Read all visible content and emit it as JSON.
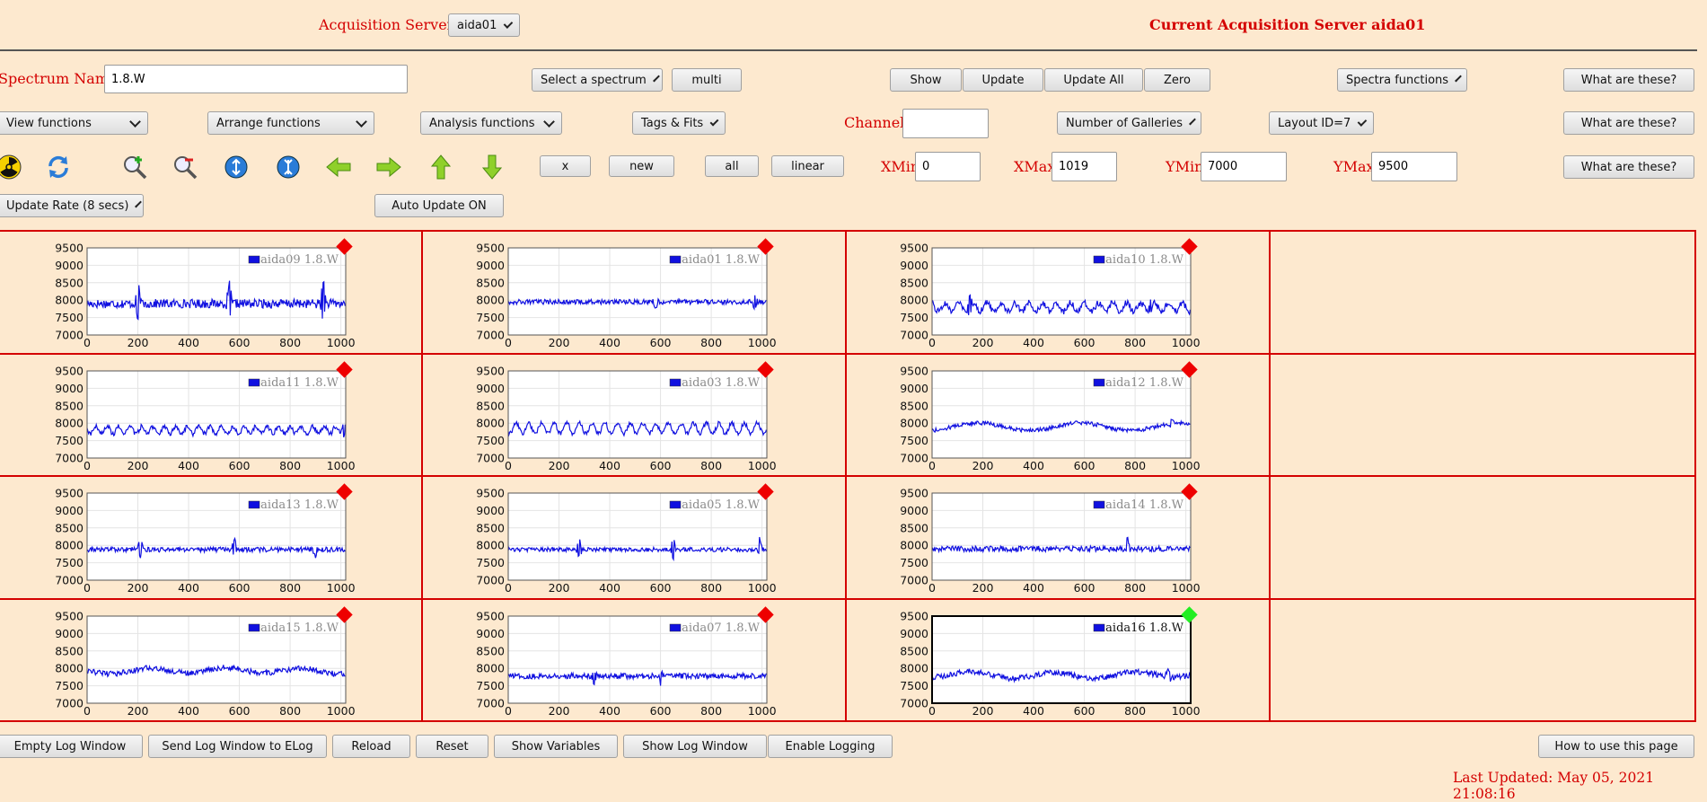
{
  "header": {
    "servers_label": "Acquisition Servers",
    "server_select": "aida01",
    "current_server": "Current Acquisition Server aida01"
  },
  "row1": {
    "spectrum_label": "Spectrum Name:",
    "spectrum_value": "1.8.W",
    "select_spectrum": "Select a spectrum",
    "multi": "multi",
    "show": "Show",
    "update": "Update",
    "update_all": "Update All",
    "zero": "Zero",
    "spectra_functions": "Spectra functions",
    "what": "What are these?"
  },
  "row2": {
    "view_functions": "View functions",
    "arrange_functions": "Arrange functions",
    "analysis_functions": "Analysis functions",
    "tags_fits": "Tags & Fits",
    "channel_label": "Channel:",
    "channel_value": "",
    "galleries": "Number of Galleries",
    "layout": "Layout ID=7",
    "what": "What are these?"
  },
  "row3": {
    "icons": [
      "radiation-icon",
      "refresh-icon",
      "zoom-in-icon",
      "zoom-out-icon",
      "expand-y-icon",
      "shrink-y-icon",
      "arrow-left-icon",
      "arrow-right-icon",
      "arrow-up-icon",
      "arrow-down-icon"
    ],
    "x": "x",
    "new": "new",
    "all": "all",
    "linear": "linear",
    "xmin_label": "XMin",
    "xmin": "0",
    "xmax_label": "XMax",
    "xmax": "1019",
    "ymin_label": "YMin",
    "ymin": "7000",
    "ymax_label": "YMax",
    "ymax": "9500",
    "what": "What are these?"
  },
  "row4": {
    "update_rate": "Update Rate (8 secs)",
    "auto_update": "Auto Update ON"
  },
  "chart_data": {
    "type": "line",
    "xlim": [
      0,
      1019
    ],
    "ylim": [
      7000,
      9500
    ],
    "x_ticks": [
      "0",
      "200",
      "400",
      "600",
      "800",
      "1000"
    ],
    "y_ticks": [
      "9500",
      "9000",
      "8500",
      "8000",
      "7500",
      "7000"
    ],
    "grid": true,
    "legend_position": "top-right",
    "series_color": "#1010e0",
    "spectra": [
      {
        "legend": "aida09 1.8.W",
        "base": 7900,
        "noise": 130,
        "spikes": [
          [
            200,
            750
          ],
          [
            560,
            600
          ],
          [
            930,
            720
          ]
        ],
        "wave_amp": 0,
        "wave_period": 80,
        "drift": 0,
        "active": false
      },
      {
        "legend": "aida01 1.8.W",
        "base": 7950,
        "noise": 70,
        "spikes": [
          [
            580,
            300
          ],
          [
            970,
            250
          ]
        ],
        "wave_amp": 0,
        "wave_period": 80,
        "drift": 0,
        "active": false
      },
      {
        "legend": "aida10 1.8.W",
        "base": 7800,
        "noise": 90,
        "spikes": [
          [
            150,
            350
          ],
          [
            860,
            280
          ]
        ],
        "wave_amp": 120,
        "wave_period": 55,
        "drift": 0,
        "active": false
      },
      {
        "legend": "aida11 1.8.W",
        "base": 7800,
        "noise": 70,
        "spikes": [
          [
            1010,
            300
          ]
        ],
        "wave_amp": 100,
        "wave_period": 45,
        "drift": 0,
        "active": false
      },
      {
        "legend": "aida03 1.8.W",
        "base": 7850,
        "noise": 60,
        "spikes": [],
        "wave_amp": 150,
        "wave_period": 50,
        "drift": 0,
        "active": false
      },
      {
        "legend": "aida12 1.8.W",
        "base": 7900,
        "noise": 60,
        "spikes": [
          [
            940,
            200
          ]
        ],
        "wave_amp": 110,
        "wave_period": 400,
        "drift": 0,
        "active": false
      },
      {
        "legend": "aida13 1.8.W",
        "base": 7880,
        "noise": 70,
        "spikes": [
          [
            210,
            300
          ],
          [
            580,
            300
          ],
          [
            900,
            250
          ]
        ],
        "wave_amp": 0,
        "wave_period": 80,
        "drift": 0,
        "active": false
      },
      {
        "legend": "aida05 1.8.W",
        "base": 7880,
        "noise": 60,
        "spikes": [
          [
            280,
            350
          ],
          [
            650,
            400
          ],
          [
            990,
            300
          ]
        ],
        "wave_amp": 0,
        "wave_period": 80,
        "drift": 0,
        "active": false
      },
      {
        "legend": "aida14 1.8.W",
        "base": 7900,
        "noise": 80,
        "spikes": [
          [
            770,
            300
          ]
        ],
        "wave_amp": 0,
        "wave_period": 80,
        "drift": 0,
        "active": false
      },
      {
        "legend": "aida15 1.8.W",
        "base": 7900,
        "noise": 80,
        "spikes": [],
        "wave_amp": 70,
        "wave_period": 300,
        "drift": 50,
        "active": false
      },
      {
        "legend": "aida07 1.8.W",
        "base": 7780,
        "noise": 80,
        "spikes": [
          [
            340,
            -250
          ],
          [
            600,
            -200
          ]
        ],
        "wave_amp": 0,
        "wave_period": 80,
        "drift": 0,
        "active": false
      },
      {
        "legend": "aida16 1.8.W",
        "base": 7850,
        "noise": 80,
        "spikes": [
          [
            930,
            300
          ]
        ],
        "wave_amp": 90,
        "wave_period": 320,
        "drift": -60,
        "active": true
      }
    ]
  },
  "footer": {
    "empty_log": "Empty Log Window",
    "send_log": "Send Log Window to ELog",
    "reload": "Reload",
    "reset": "Reset",
    "show_variables": "Show Variables",
    "show_log": "Show Log Window",
    "enable_logging": "Enable Logging",
    "how_to": "How to use this page",
    "last_updated": "Last Updated: May 05, 2021 21:08:16"
  }
}
